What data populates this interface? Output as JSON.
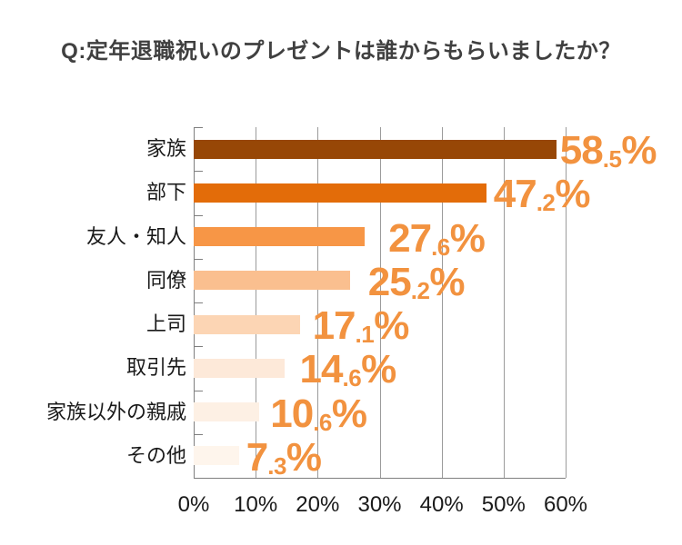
{
  "title": "Q:定年退職祝いのプレゼントは誰からもらいましたか？",
  "chart_data": {
    "type": "bar",
    "orientation": "horizontal",
    "title": "Q:定年退職祝いのプレゼントは誰からもらいましたか？",
    "categories": [
      "家族",
      "部下",
      "友人・知人",
      "同僚",
      "上司",
      "取引先",
      "家族以外の親戚",
      "その他"
    ],
    "values": [
      58.5,
      47.2,
      27.6,
      25.2,
      17.1,
      14.6,
      10.6,
      7.3
    ],
    "unit": "%",
    "xlim": [
      0,
      60
    ],
    "x_tick_labels": [
      "0%",
      "10%",
      "20%",
      "30%",
      "40%",
      "50%",
      "60%"
    ],
    "grid": true,
    "legend": false,
    "bar_colors": [
      "#974706",
      "#E36C09",
      "#F79646",
      "#FABF8F",
      "#FCD5B4",
      "#FDE9D9",
      "#FDF0E4",
      "#FEF5EC"
    ],
    "value_label_color": "#F2923F",
    "title_color": "#404040",
    "axis_color": "#7F7F7F",
    "grid_color": "#9B9B9B"
  }
}
